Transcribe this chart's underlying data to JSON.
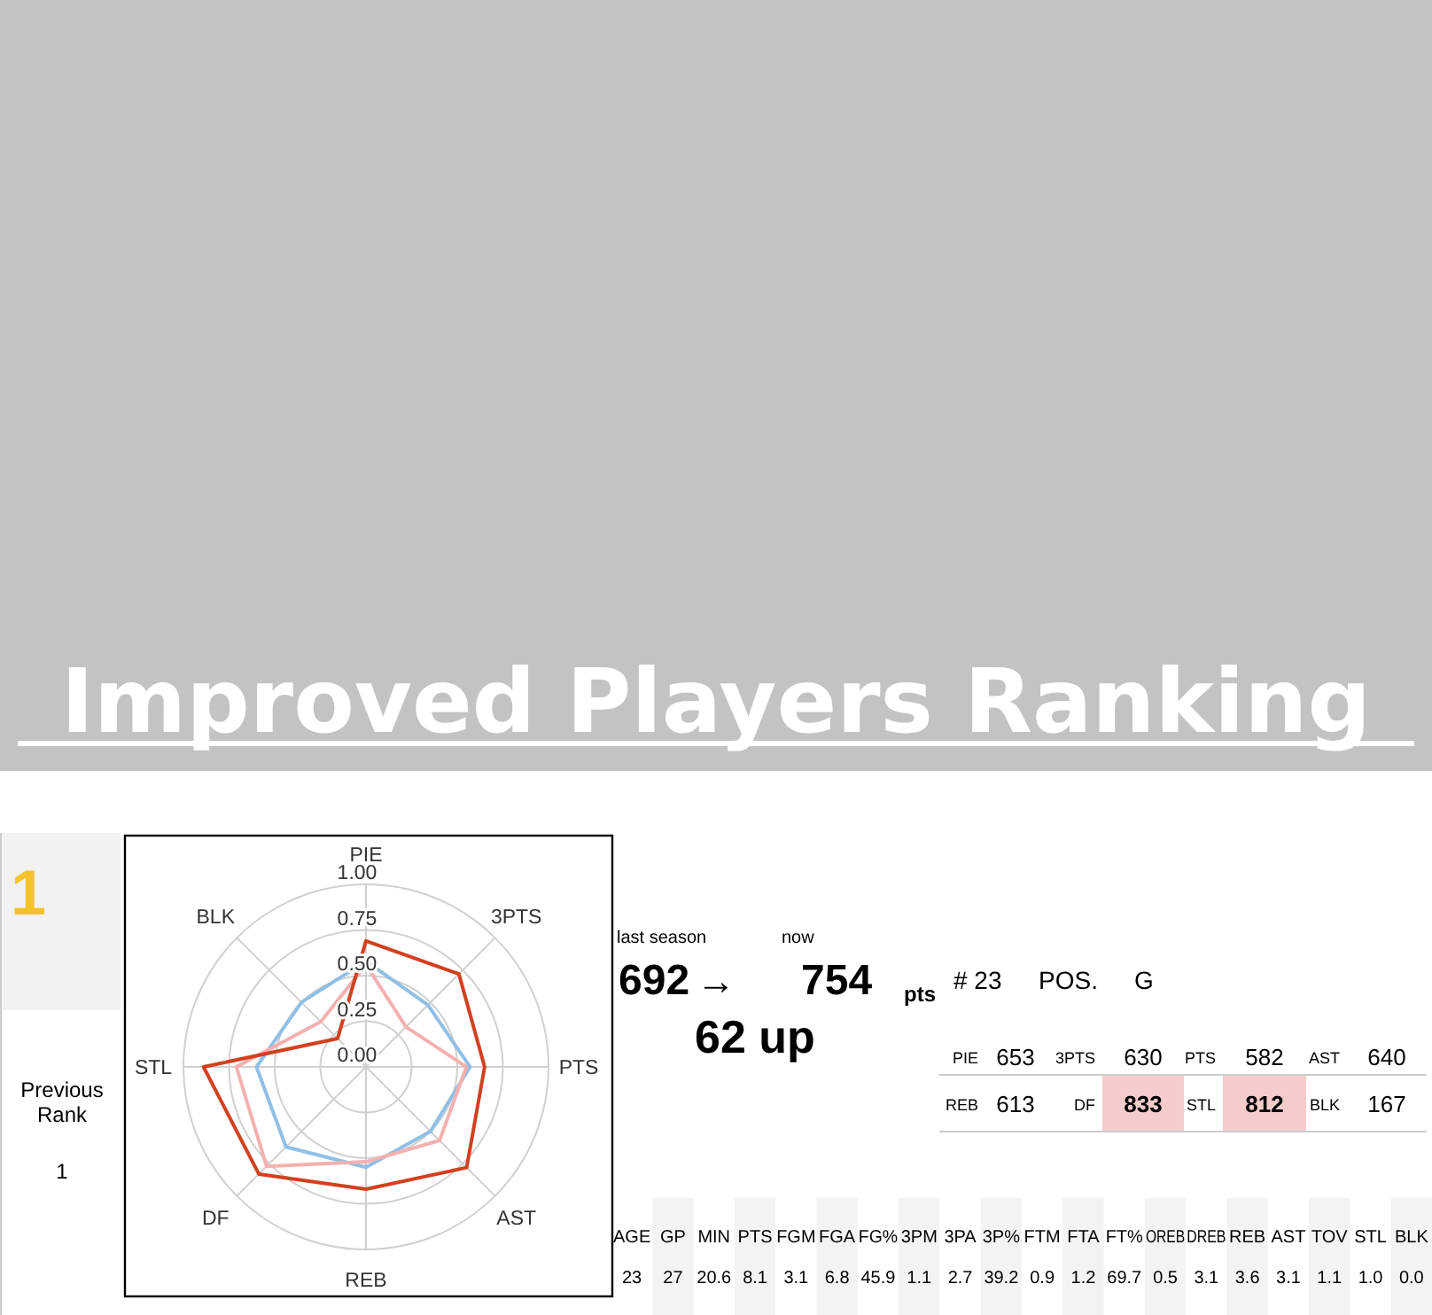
{
  "chart_data": [
    {
      "type": "other",
      "title": "Improved Players Ranking",
      "annotations": [
        "1",
        "Previous Rank",
        "1"
      ]
    },
    {
      "type": "radar",
      "categories": [
        "PIE",
        "3PTS",
        "PTS",
        "AST",
        "REB",
        "DF",
        "STL",
        "BLK"
      ],
      "ylim": [
        0,
        1
      ],
      "yticks": [
        {
          "value": 0,
          "label": "0.00"
        },
        {
          "value": 0.25,
          "label": "0.25"
        },
        {
          "value": 0.5,
          "label": "0.50"
        },
        {
          "value": 0.75,
          "label": "0.75"
        },
        {
          "value": 1,
          "label": "1.00"
        }
      ],
      "grid": true,
      "marker": "none",
      "series": [
        {
          "color": "#90bfe6",
          "values": [
            0.58,
            0.48,
            0.57,
            0.5,
            0.55,
            0.62,
            0.6,
            0.5
          ]
        },
        {
          "color": "#f4b0b0",
          "values": [
            0.56,
            0.31,
            0.55,
            0.57,
            0.52,
            0.77,
            0.71,
            0.35
          ]
        },
        {
          "color": "#d2401f",
          "values": [
            0.69,
            0.72,
            0.65,
            0.78,
            0.67,
            0.83,
            0.89,
            0.22
          ]
        }
      ]
    },
    {
      "type": "other",
      "annotations": [
        "last season",
        "now",
        "692",
        "→",
        "754",
        "pts",
        "62 up",
        "# 23",
        "POS.",
        "G"
      ]
    },
    {
      "type": "other",
      "categories": [
        "PIE",
        "3PTS",
        "PTS",
        "AST",
        "REB",
        "DF",
        "STL",
        "BLK"
      ],
      "values": [
        653,
        630,
        582,
        640,
        613,
        833,
        812,
        167
      ],
      "data_labels": true,
      "colors": [
        "#ffffff",
        "#ffffff",
        "#ffffff",
        "#ffffff",
        "#ffffff",
        "#f4cccc",
        "#f4cccc",
        "#ffffff"
      ]
    },
    {
      "type": "other",
      "categories": [
        "AGE",
        "GP",
        "MIN",
        "PTS",
        "FGM",
        "FGA",
        "FG%",
        "3PM",
        "3PA",
        "3P%",
        "FTM",
        "FTA",
        "FT%",
        "OREB",
        "DREB",
        "REB",
        "AST",
        "TOV",
        "STL",
        "BLK"
      ],
      "values": [
        23,
        27,
        20.6,
        8.1,
        3.1,
        6.8,
        45.9,
        1.1,
        2.7,
        39.2,
        0.9,
        1.2,
        69.7,
        0.5,
        3.1,
        3.6,
        3.1,
        1.1,
        1.0,
        0.0
      ],
      "value_labels": [
        "23",
        "27",
        "20.6",
        "8.1",
        "3.1",
        "6.8",
        "45.9",
        "1.1",
        "2.7",
        "39.2",
        "0.9",
        "1.2",
        "69.7",
        "0.5",
        "3.1",
        "3.6",
        "3.1",
        "1.1",
        "1.0",
        "0.0"
      ]
    }
  ]
}
